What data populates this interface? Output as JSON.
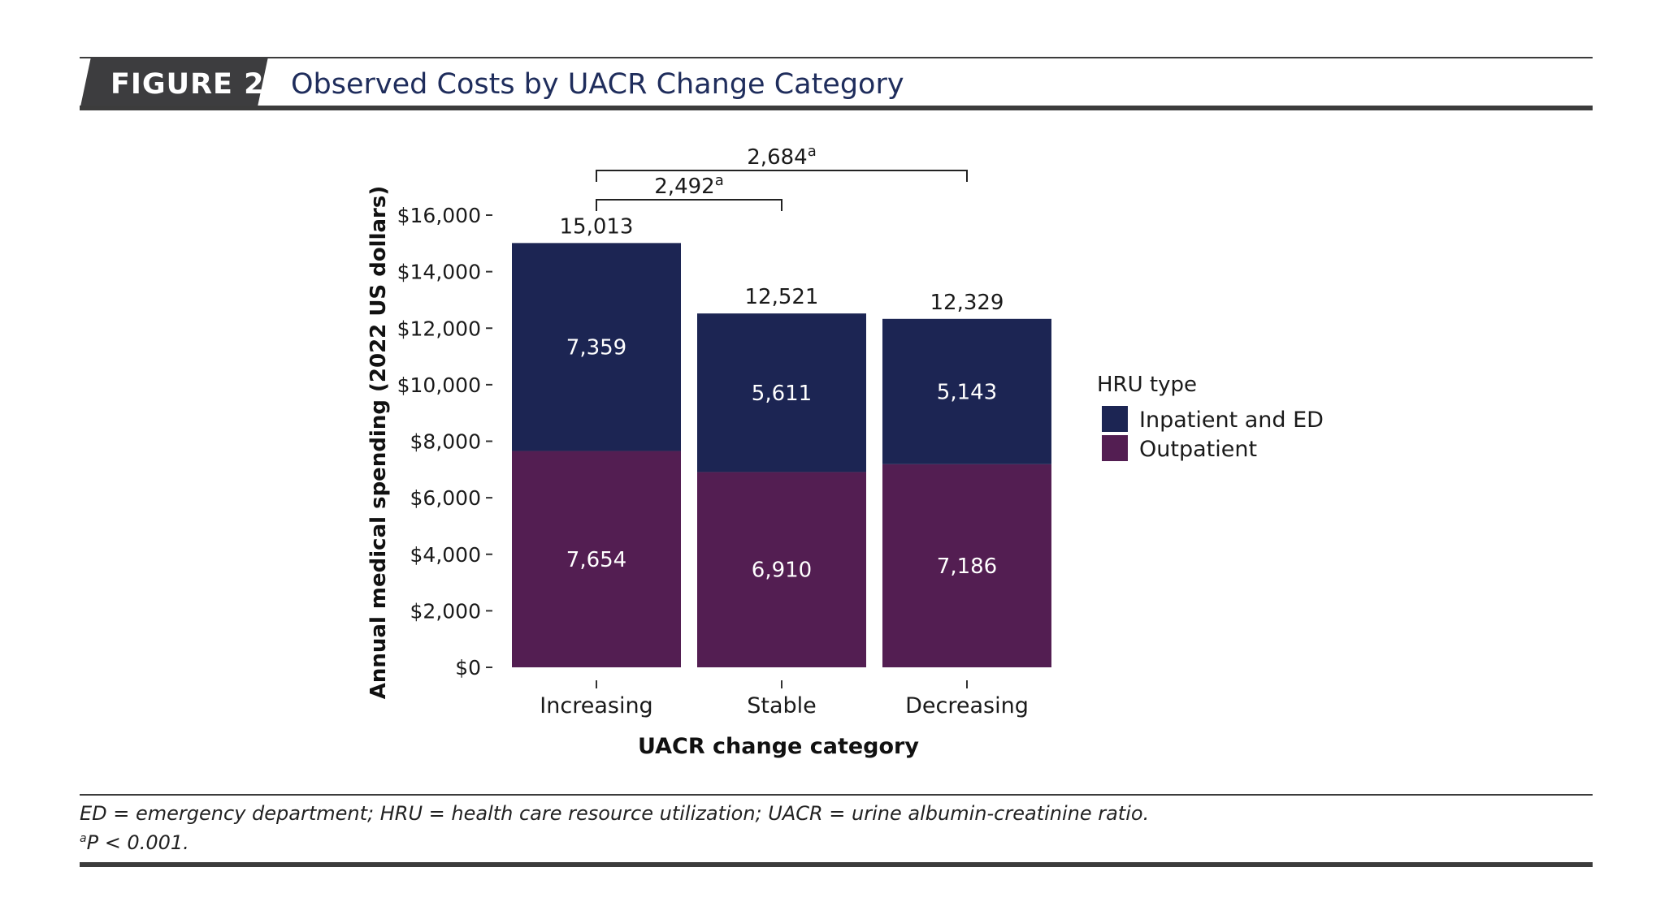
{
  "header": {
    "figure_label": "FIGURE 2",
    "title": "Observed Costs by UACR Change Category"
  },
  "chart_data": {
    "type": "bar",
    "stacked": true,
    "categories": [
      "Increasing",
      "Stable",
      "Decreasing"
    ],
    "series": [
      {
        "name": "Outpatient",
        "values": [
          7654,
          6910,
          7186
        ],
        "value_labels": [
          "7,654",
          "6,910",
          "7,186"
        ]
      },
      {
        "name": "Inpatient and ED",
        "values": [
          7359,
          5611,
          5143
        ],
        "value_labels": [
          "7,359",
          "5,611",
          "5,143"
        ]
      }
    ],
    "totals": [
      15013,
      12521,
      12329
    ],
    "total_labels": [
      "15,013",
      "12,521",
      "12,329"
    ],
    "xlabel": "UACR change category",
    "ylabel": "Annual medical spending (2022 US dollars)",
    "ylim": [
      0,
      16000
    ],
    "yticks": [
      0,
      2000,
      4000,
      6000,
      8000,
      10000,
      12000,
      14000,
      16000
    ],
    "ytick_labels": [
      "$0",
      "$2,000",
      "$4,000",
      "$6,000",
      "$8,000",
      "$10,000",
      "$12,000",
      "$14,000",
      "$16,000"
    ],
    "legend": {
      "title": "HRU type",
      "placement": "right",
      "entries": [
        "Inpatient and ED",
        "Outpatient"
      ]
    },
    "annotations": [
      {
        "from": "Increasing",
        "to": "Stable",
        "label": "2,492",
        "superscript": "a"
      },
      {
        "from": "Increasing",
        "to": "Decreasing",
        "label": "2,684",
        "superscript": "a"
      }
    ],
    "grid": false
  },
  "colors": {
    "inpatient": "#1c2553",
    "outpatient": "#531e52",
    "title_text": "#1f2d5c"
  },
  "footer": {
    "abbreviations": "ED = emergency department; HRU = health care resource utilization; UACR = urine albumin-creatinine ratio.",
    "footnote_marker": "a",
    "footnote_text": "P < 0.001."
  }
}
